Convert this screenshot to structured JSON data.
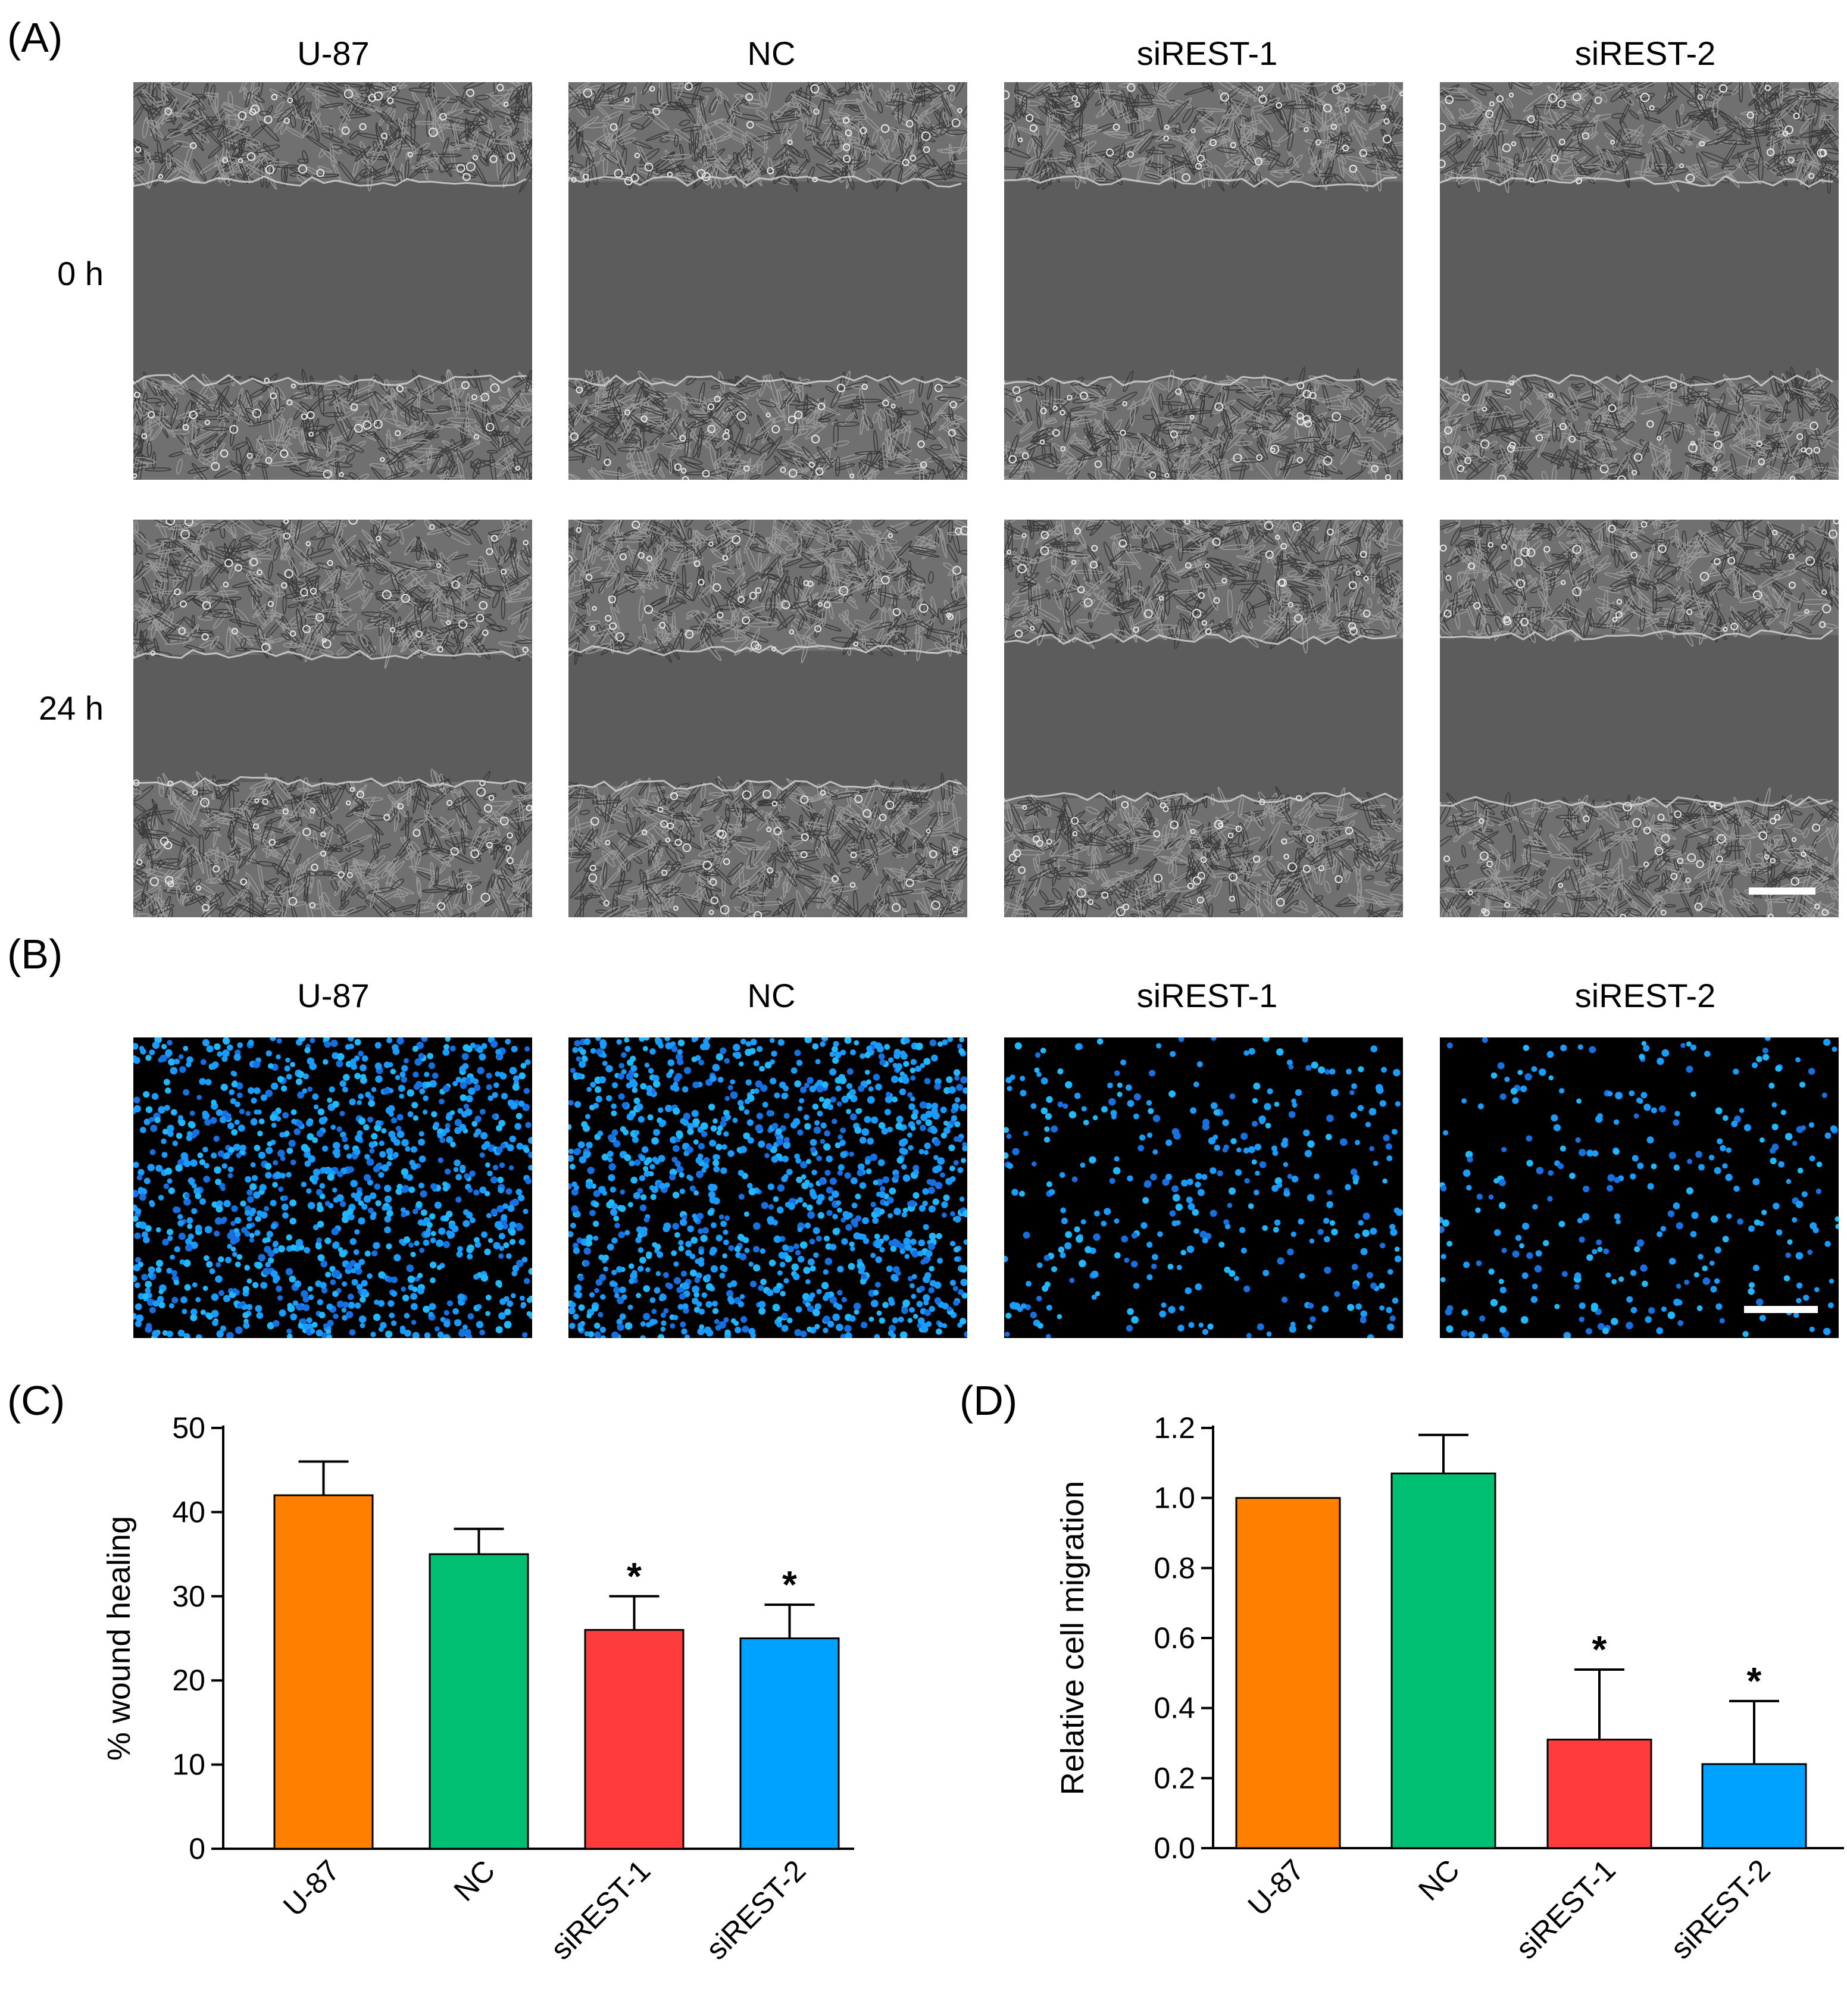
{
  "figure": {
    "panel_a": {
      "letter": "(A)",
      "columns": [
        "U-87",
        "NC",
        "siREST-1",
        "siREST-2"
      ],
      "rows": [
        "0 h",
        "24 h"
      ]
    },
    "panel_b": {
      "letter": "(B)",
      "columns": [
        "U-87",
        "NC",
        "siREST-1",
        "siREST-2"
      ]
    },
    "panel_c": {
      "letter": "(C)"
    },
    "panel_d": {
      "letter": "(D)"
    }
  },
  "chart_data": [
    {
      "type": "bar",
      "panel": "C",
      "categories": [
        "U-87",
        "NC",
        "siREST-1",
        "siREST-2"
      ],
      "values": [
        42,
        35,
        26,
        25
      ],
      "errors": [
        4,
        3,
        4,
        4
      ],
      "significance": [
        "",
        "",
        "*",
        "*"
      ],
      "colors": [
        "#ff8000",
        "#00bf72",
        "#ff3c3c",
        "#00a2ff"
      ],
      "ylabel": "% wound healing",
      "xlabel": "",
      "ylim": [
        0,
        50
      ],
      "yticks": [
        0,
        10,
        20,
        30,
        40,
        50
      ],
      "ytick_labels": [
        "0",
        "10",
        "20",
        "30",
        "40",
        "50"
      ]
    },
    {
      "type": "bar",
      "panel": "D",
      "categories": [
        "U-87",
        "NC",
        "siREST-1",
        "siREST-2"
      ],
      "values": [
        1.0,
        1.07,
        0.31,
        0.24
      ],
      "errors": [
        0,
        0.11,
        0.2,
        0.18
      ],
      "significance": [
        "",
        "",
        "*",
        "*"
      ],
      "colors": [
        "#ff8000",
        "#00bf72",
        "#ff3c3c",
        "#00a2ff"
      ],
      "ylabel": "Relative cell migration",
      "xlabel": "",
      "ylim": [
        0,
        1.2
      ],
      "yticks": [
        0,
        0.2,
        0.4,
        0.6,
        0.8,
        1.0,
        1.2
      ],
      "ytick_labels": [
        "0.0",
        "0.2",
        "0.4",
        "0.6",
        "0.8",
        "1.0",
        "1.2"
      ]
    }
  ]
}
